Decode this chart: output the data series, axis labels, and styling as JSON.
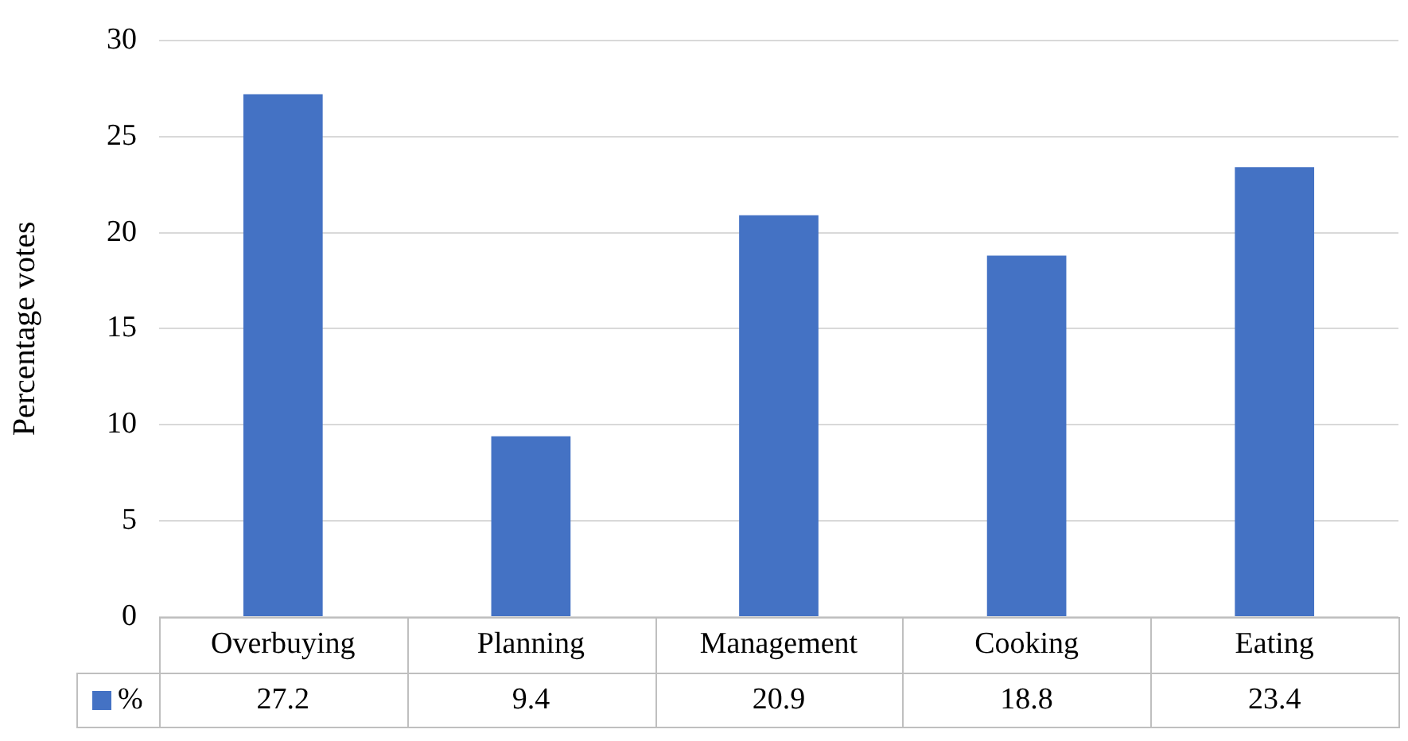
{
  "chart_data": {
    "type": "bar",
    "ylabel": "Percentage votes",
    "categories": [
      "Overbuying",
      "Planning",
      "Management",
      "Cooking",
      "Eating"
    ],
    "series": [
      {
        "name": "%",
        "color": "#4472c4",
        "values": [
          27.2,
          9.4,
          20.9,
          18.8,
          23.4
        ]
      }
    ],
    "ylim": [
      0,
      30
    ],
    "yticks": [
      0,
      5,
      10,
      15,
      20,
      25,
      30
    ],
    "grid": "y",
    "legend": "bottom left",
    "data_labels": true
  }
}
